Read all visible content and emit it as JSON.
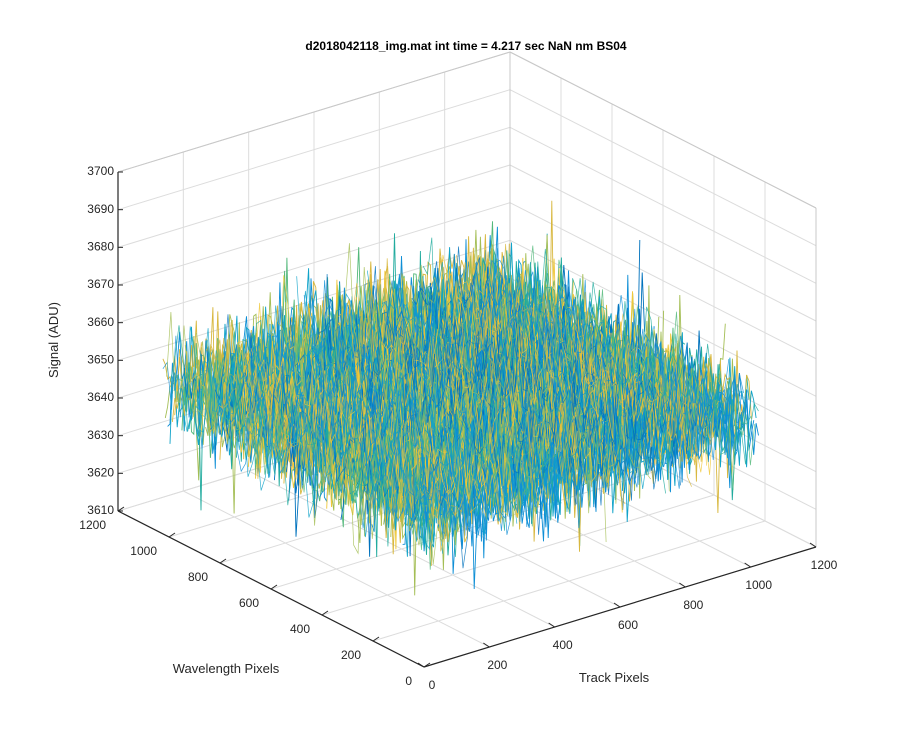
{
  "chart_data": {
    "type": "surface",
    "title": "d2018042118_img.mat int time = 4.217 sec  NaN nm BS04",
    "xlabel": "Track Pixels",
    "ylabel": "Wavelength Pixels",
    "zlabel": "Signal (ADU)",
    "xlim": [
      0,
      1200
    ],
    "ylim": [
      0,
      1200
    ],
    "zlim": [
      3610,
      3700
    ],
    "x_ticks": [
      "0",
      "200",
      "400",
      "600",
      "800",
      "1000",
      "1200"
    ],
    "y_ticks": [
      "0",
      "200",
      "400",
      "600",
      "800",
      "1000",
      "1200"
    ],
    "z_ticks": [
      "3610",
      "3620",
      "3630",
      "3640",
      "3650",
      "3660",
      "3670",
      "3680",
      "3690",
      "3700"
    ],
    "data_extent": {
      "x": [
        0,
        1024
      ],
      "y": [
        0,
        1024
      ]
    },
    "signal_mean": 3650,
    "signal_range": [
      3610,
      3697
    ],
    "grid": true,
    "colors": [
      "#0072bd",
      "#0f8fd6",
      "#11a3c9",
      "#21ab9e",
      "#52b87a",
      "#a4be55",
      "#d8b840",
      "#f0c83a"
    ]
  }
}
